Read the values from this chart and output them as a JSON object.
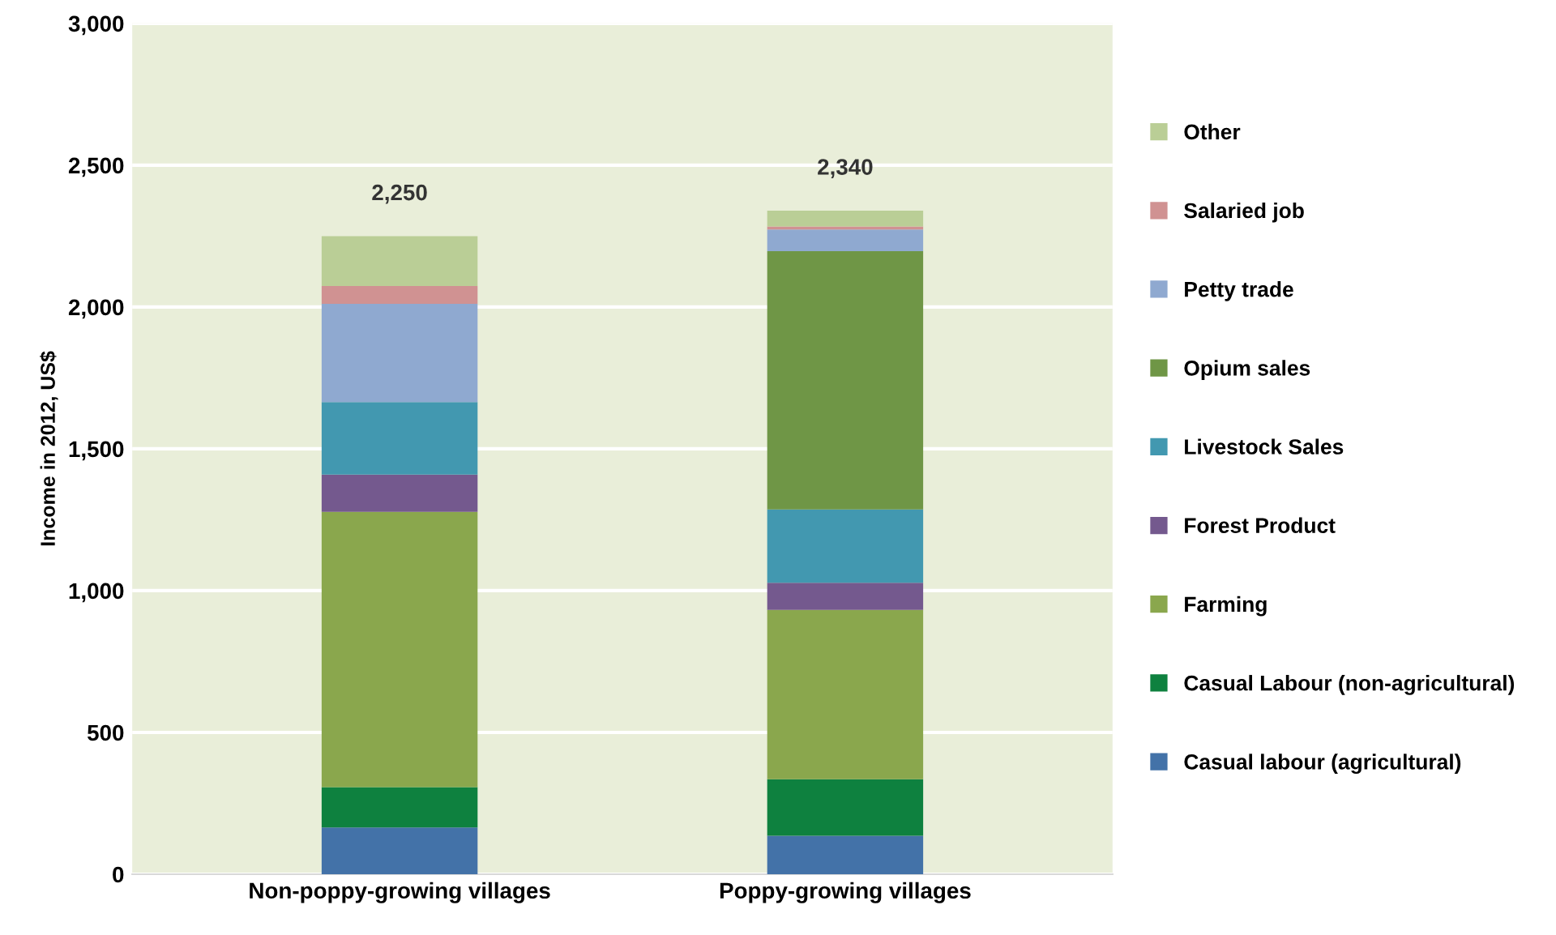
{
  "chart_data": {
    "type": "bar",
    "stacked": true,
    "ylabel": "Income in 2012, US$",
    "categories": [
      "Non-poppy-growing villages",
      "Poppy-growing villages"
    ],
    "series": [
      {
        "name": "Casual labour (agricultural)",
        "color": "#4372a8",
        "values": [
          165,
          136
        ]
      },
      {
        "name": "Casual Labour (non-agricultural)",
        "color": "#0e813f",
        "values": [
          142,
          199
        ]
      },
      {
        "name": "Farming",
        "color": "#8aa74d",
        "values": [
          971,
          597
        ]
      },
      {
        "name": "Forest Product",
        "color": "#74598e",
        "values": [
          131,
          96
        ]
      },
      {
        "name": "Livestock Sales",
        "color": "#4298b0",
        "values": [
          256,
          258
        ]
      },
      {
        "name": "Opium sales",
        "color": "#6f9646",
        "values": [
          0,
          911
        ]
      },
      {
        "name": "Petty trade",
        "color": "#8fa9d0",
        "values": [
          346,
          76
        ]
      },
      {
        "name": "Salaried job",
        "color": "#d09292",
        "values": [
          63,
          11
        ]
      },
      {
        "name": "Other",
        "color": "#bace96",
        "values": [
          176,
          56
        ]
      }
    ],
    "totals": [
      "2,250",
      "2,340"
    ],
    "ylim": [
      0,
      3000
    ],
    "yticks": [
      {
        "value": 0,
        "label": "0"
      },
      {
        "value": 500,
        "label": "500"
      },
      {
        "value": 1000,
        "label": "1,000"
      },
      {
        "value": 1500,
        "label": "1,500"
      },
      {
        "value": 2000,
        "label": "2,000"
      },
      {
        "value": 2500,
        "label": "2,500"
      },
      {
        "value": 3000,
        "label": "3,000"
      }
    ],
    "grid": "y",
    "legend": "right"
  }
}
